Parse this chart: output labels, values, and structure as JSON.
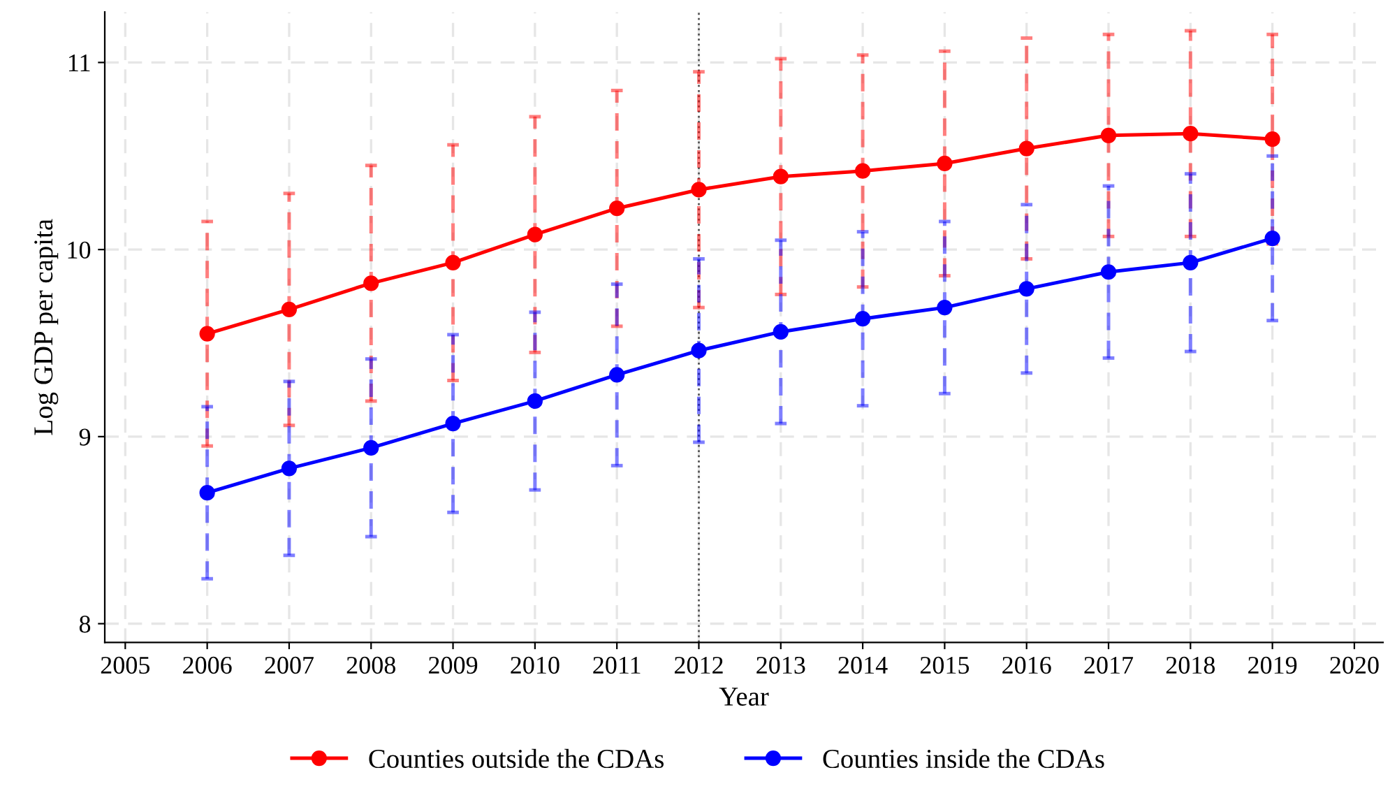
{
  "chart_data": {
    "type": "line",
    "xlabel": "Year",
    "ylabel": "Log GDP per capita",
    "x": [
      2006,
      2007,
      2008,
      2009,
      2010,
      2011,
      2012,
      2013,
      2014,
      2015,
      2016,
      2017,
      2018,
      2019
    ],
    "series": [
      {
        "name": "Counties outside the CDAs",
        "color": "#ff0000",
        "values": [
          9.55,
          9.68,
          9.82,
          9.93,
          10.08,
          10.22,
          10.32,
          10.39,
          10.42,
          10.46,
          10.54,
          10.61,
          10.62,
          10.59
        ],
        "errors": [
          0.6,
          0.62,
          0.63,
          0.63,
          0.63,
          0.63,
          0.63,
          0.63,
          0.62,
          0.6,
          0.59,
          0.54,
          0.55,
          0.56
        ]
      },
      {
        "name": "Counties inside the CDAs",
        "color": "#0000ff",
        "values": [
          8.7,
          8.83,
          8.94,
          9.07,
          9.19,
          9.33,
          9.46,
          9.56,
          9.63,
          9.69,
          9.79,
          9.88,
          9.93,
          10.06
        ],
        "errors": [
          0.46,
          0.465,
          0.475,
          0.475,
          0.475,
          0.485,
          0.49,
          0.49,
          0.465,
          0.46,
          0.45,
          0.46,
          0.475,
          0.44
        ]
      }
    ],
    "xlim": [
      2004.75,
      2020.35
    ],
    "xticks": [
      2005,
      2006,
      2007,
      2008,
      2009,
      2010,
      2011,
      2012,
      2013,
      2014,
      2015,
      2016,
      2017,
      2018,
      2019,
      2020
    ],
    "ylim": [
      7.9,
      11.27
    ],
    "yticks": [
      8,
      9,
      10,
      11
    ],
    "ref_lines": [
      {
        "axis": "x",
        "value": 2012,
        "color": "#555555",
        "line_style": "dotted"
      }
    ],
    "grid": true,
    "legend": "bottom",
    "marker": "circle",
    "line_style": "solid"
  }
}
